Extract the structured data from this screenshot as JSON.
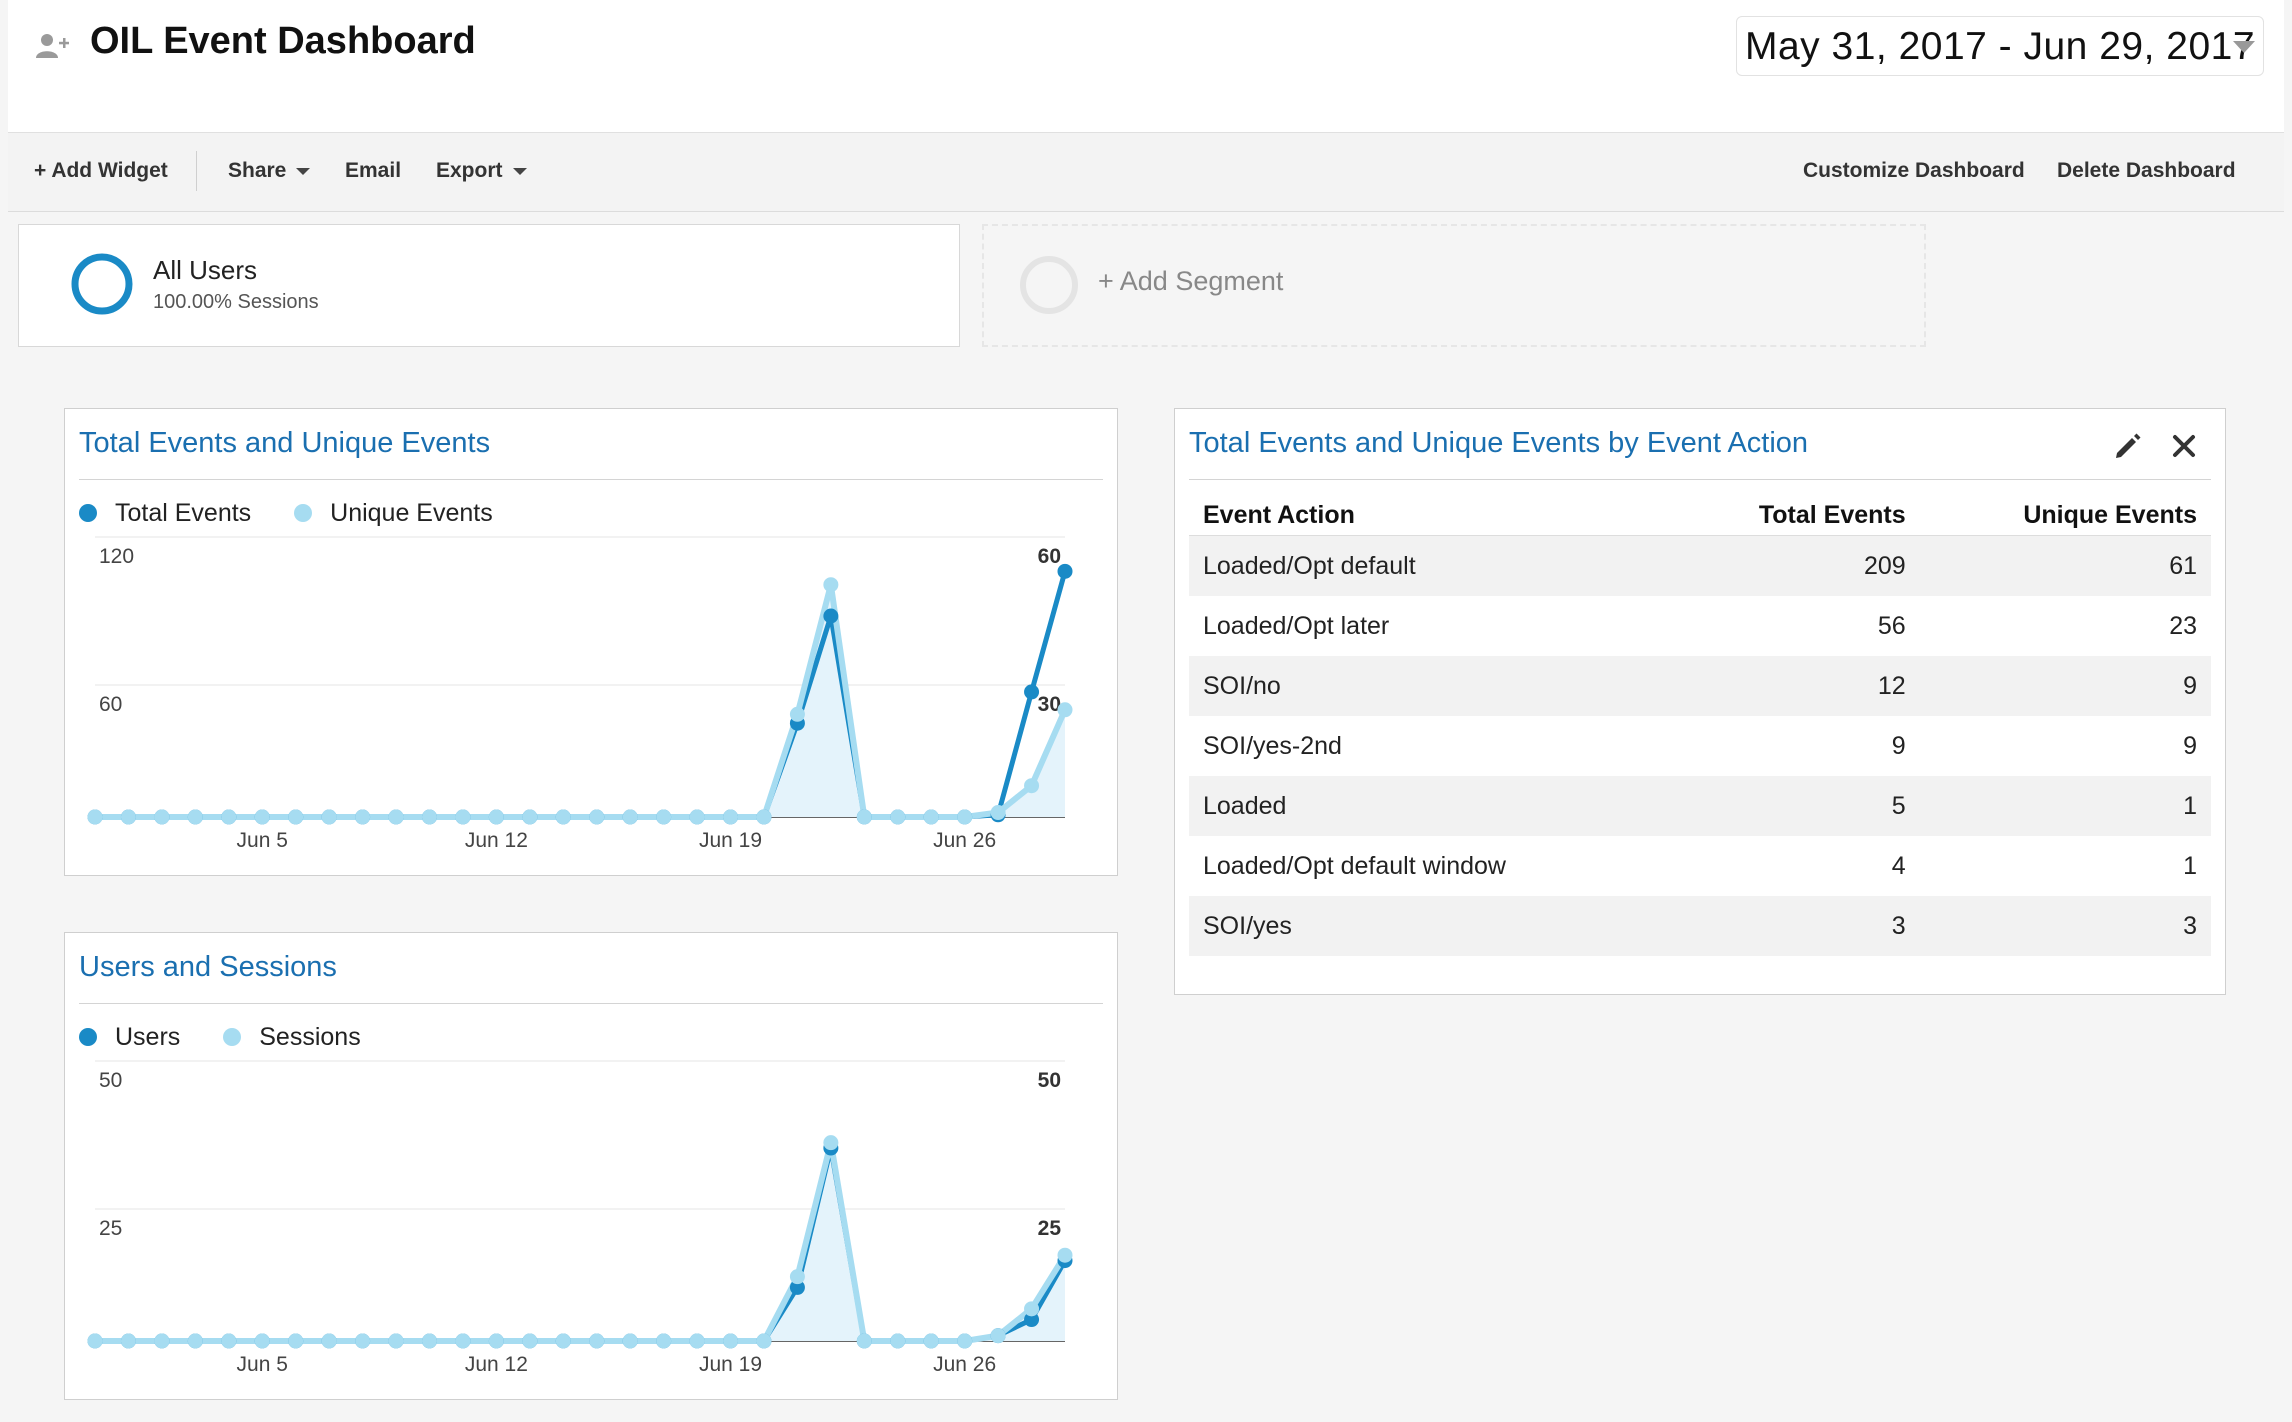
{
  "header": {
    "title": "OIL Event Dashboard",
    "user_icon": "add-user-icon",
    "date_range": "May 31, 2017 - Jun 29, 2017"
  },
  "toolbar": {
    "add_widget": "+ Add Widget",
    "share": "Share",
    "email": "Email",
    "export": "Export",
    "customize": "Customize Dashboard",
    "delete": "Delete Dashboard"
  },
  "segments": {
    "active": {
      "name": "All Users",
      "sub": "100.00% Sessions",
      "color": "#1a8ac6"
    },
    "add_label": "+ Add Segment"
  },
  "colors": {
    "dark_series": "#1a8ac6",
    "light_series": "#a6dcf1",
    "title": "#1a6fb0"
  },
  "widget_events": {
    "title": "Total Events and Unique Events",
    "legend": [
      "Total Events",
      "Unique Events"
    ]
  },
  "widget_users": {
    "title": "Users and Sessions",
    "legend": [
      "Users",
      "Sessions"
    ]
  },
  "widget_table": {
    "title": "Total Events and Unique Events by Event Action",
    "edit_icon": "pencil-icon",
    "close_icon": "close-icon",
    "columns": [
      "Event Action",
      "Total Events",
      "Unique Events"
    ],
    "rows": [
      [
        "Loaded/Opt default",
        "209",
        "61"
      ],
      [
        "Loaded/Opt later",
        "56",
        "23"
      ],
      [
        "SOI/no",
        "12",
        "9"
      ],
      [
        "SOI/yes-2nd",
        "9",
        "9"
      ],
      [
        "Loaded",
        "5",
        "1"
      ],
      [
        "Loaded/Opt default window",
        "4",
        "1"
      ],
      [
        "SOI/yes",
        "3",
        "3"
      ]
    ]
  },
  "chart_data": [
    {
      "type": "line",
      "x": [
        "May 31",
        "Jun 1",
        "Jun 2",
        "Jun 3",
        "Jun 4",
        "Jun 5",
        "Jun 6",
        "Jun 7",
        "Jun 8",
        "Jun 9",
        "Jun 10",
        "Jun 11",
        "Jun 12",
        "Jun 13",
        "Jun 14",
        "Jun 15",
        "Jun 16",
        "Jun 17",
        "Jun 18",
        "Jun 19",
        "Jun 20",
        "Jun 21",
        "Jun 22",
        "Jun 23",
        "Jun 24",
        "Jun 25",
        "Jun 26",
        "Jun 27",
        "Jun 28",
        "Jun 29"
      ],
      "x_tick_labels": [
        "Jun 5",
        "Jun 12",
        "Jun 19",
        "Jun 26"
      ],
      "series": [
        {
          "name": "Total Events",
          "axis": "left",
          "values": [
            0,
            0,
            0,
            0,
            0,
            0,
            0,
            0,
            0,
            0,
            0,
            0,
            0,
            0,
            0,
            0,
            0,
            0,
            0,
            0,
            0,
            42,
            90,
            0,
            0,
            0,
            0,
            1,
            56,
            110
          ]
        },
        {
          "name": "Unique Events",
          "axis": "right",
          "values": [
            0,
            0,
            0,
            0,
            0,
            0,
            0,
            0,
            0,
            0,
            0,
            0,
            0,
            0,
            0,
            0,
            0,
            0,
            0,
            0,
            0,
            23,
            52,
            0,
            0,
            0,
            0,
            1,
            7,
            24
          ]
        }
      ],
      "left_axis": {
        "ticks": [
          "120",
          "60"
        ],
        "range": [
          0,
          120
        ]
      },
      "right_axis": {
        "ticks": [
          "60",
          "30"
        ],
        "range": [
          0,
          60
        ]
      },
      "legend_position": "top-left",
      "grid": true
    },
    {
      "type": "line",
      "x": [
        "May 31",
        "Jun 1",
        "Jun 2",
        "Jun 3",
        "Jun 4",
        "Jun 5",
        "Jun 6",
        "Jun 7",
        "Jun 8",
        "Jun 9",
        "Jun 10",
        "Jun 11",
        "Jun 12",
        "Jun 13",
        "Jun 14",
        "Jun 15",
        "Jun 16",
        "Jun 17",
        "Jun 18",
        "Jun 19",
        "Jun 20",
        "Jun 21",
        "Jun 22",
        "Jun 23",
        "Jun 24",
        "Jun 25",
        "Jun 26",
        "Jun 27",
        "Jun 28",
        "Jun 29"
      ],
      "x_tick_labels": [
        "Jun 5",
        "Jun 12",
        "Jun 19",
        "Jun 26"
      ],
      "series": [
        {
          "name": "Users",
          "axis": "left",
          "values": [
            0,
            0,
            0,
            0,
            0,
            0,
            0,
            0,
            0,
            0,
            0,
            0,
            0,
            0,
            0,
            0,
            0,
            0,
            0,
            0,
            0,
            10,
            36,
            0,
            0,
            0,
            0,
            1,
            4,
            15
          ]
        },
        {
          "name": "Sessions",
          "axis": "right",
          "values": [
            0,
            0,
            0,
            0,
            0,
            0,
            0,
            0,
            0,
            0,
            0,
            0,
            0,
            0,
            0,
            0,
            0,
            0,
            0,
            0,
            0,
            12,
            37,
            0,
            0,
            0,
            0,
            1,
            6,
            16
          ]
        }
      ],
      "left_axis": {
        "ticks": [
          "50",
          "25"
        ],
        "range": [
          0,
          50
        ]
      },
      "right_axis": {
        "ticks": [
          "50",
          "25"
        ],
        "range": [
          0,
          50
        ]
      },
      "legend_position": "top-left",
      "grid": true
    }
  ]
}
